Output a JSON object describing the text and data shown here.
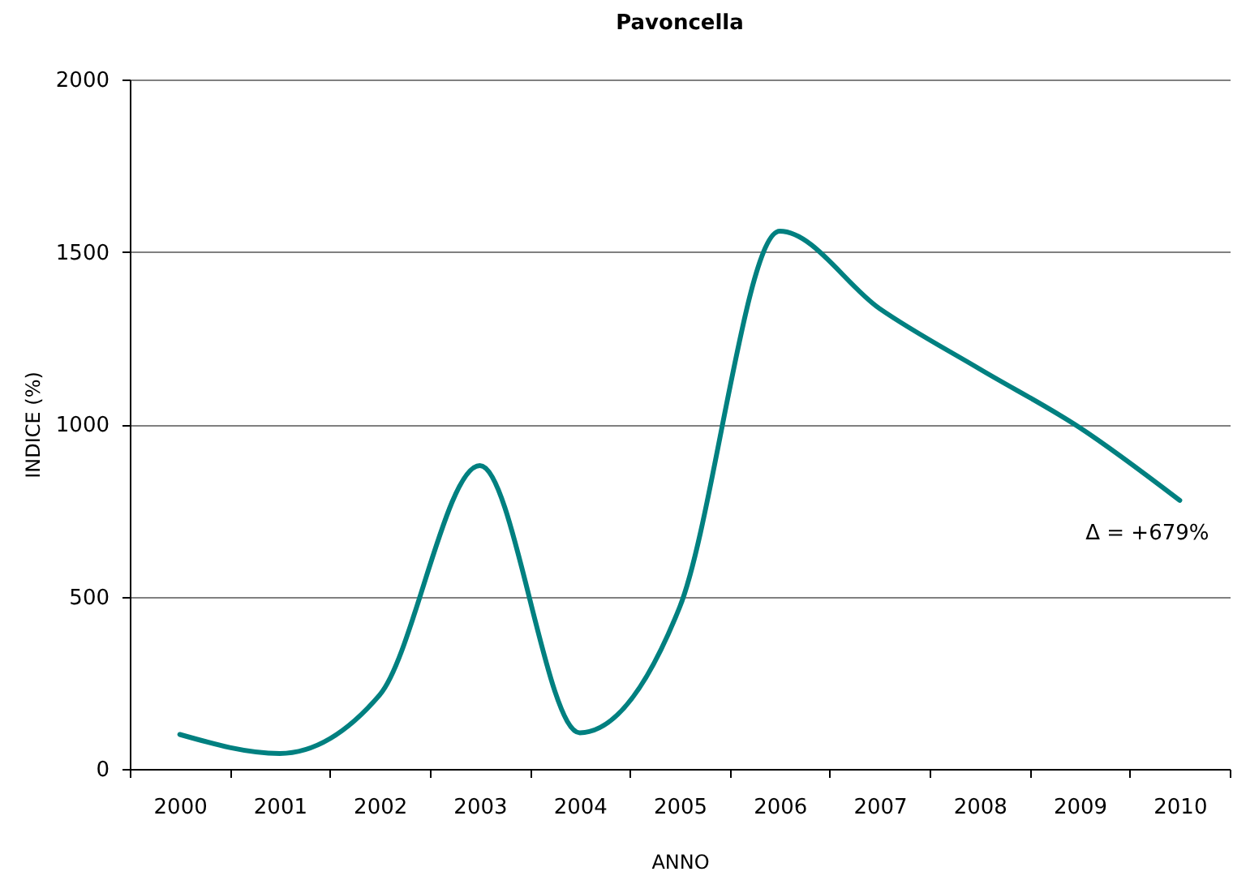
{
  "chart_data": {
    "type": "line",
    "title": "Pavoncella",
    "xlabel": "ANNO",
    "ylabel": "INDICE (%)",
    "categories": [
      "2000",
      "2001",
      "2002",
      "2003",
      "2004",
      "2005",
      "2006",
      "2007",
      "2008",
      "2009",
      "2010"
    ],
    "series": [
      {
        "color": "#008080",
        "values": [
          100,
          45,
          215,
          880,
          105,
          470,
          1560,
          1335,
          1160,
          990,
          779
        ]
      }
    ],
    "ylim": [
      0,
      2000
    ],
    "yticks": [
      0,
      500,
      1000,
      1500,
      2000
    ],
    "grid": "y",
    "line_style": "solid",
    "annotations": [
      {
        "text": "Δ = +679%",
        "x": "2010",
        "y": 779
      }
    ]
  }
}
